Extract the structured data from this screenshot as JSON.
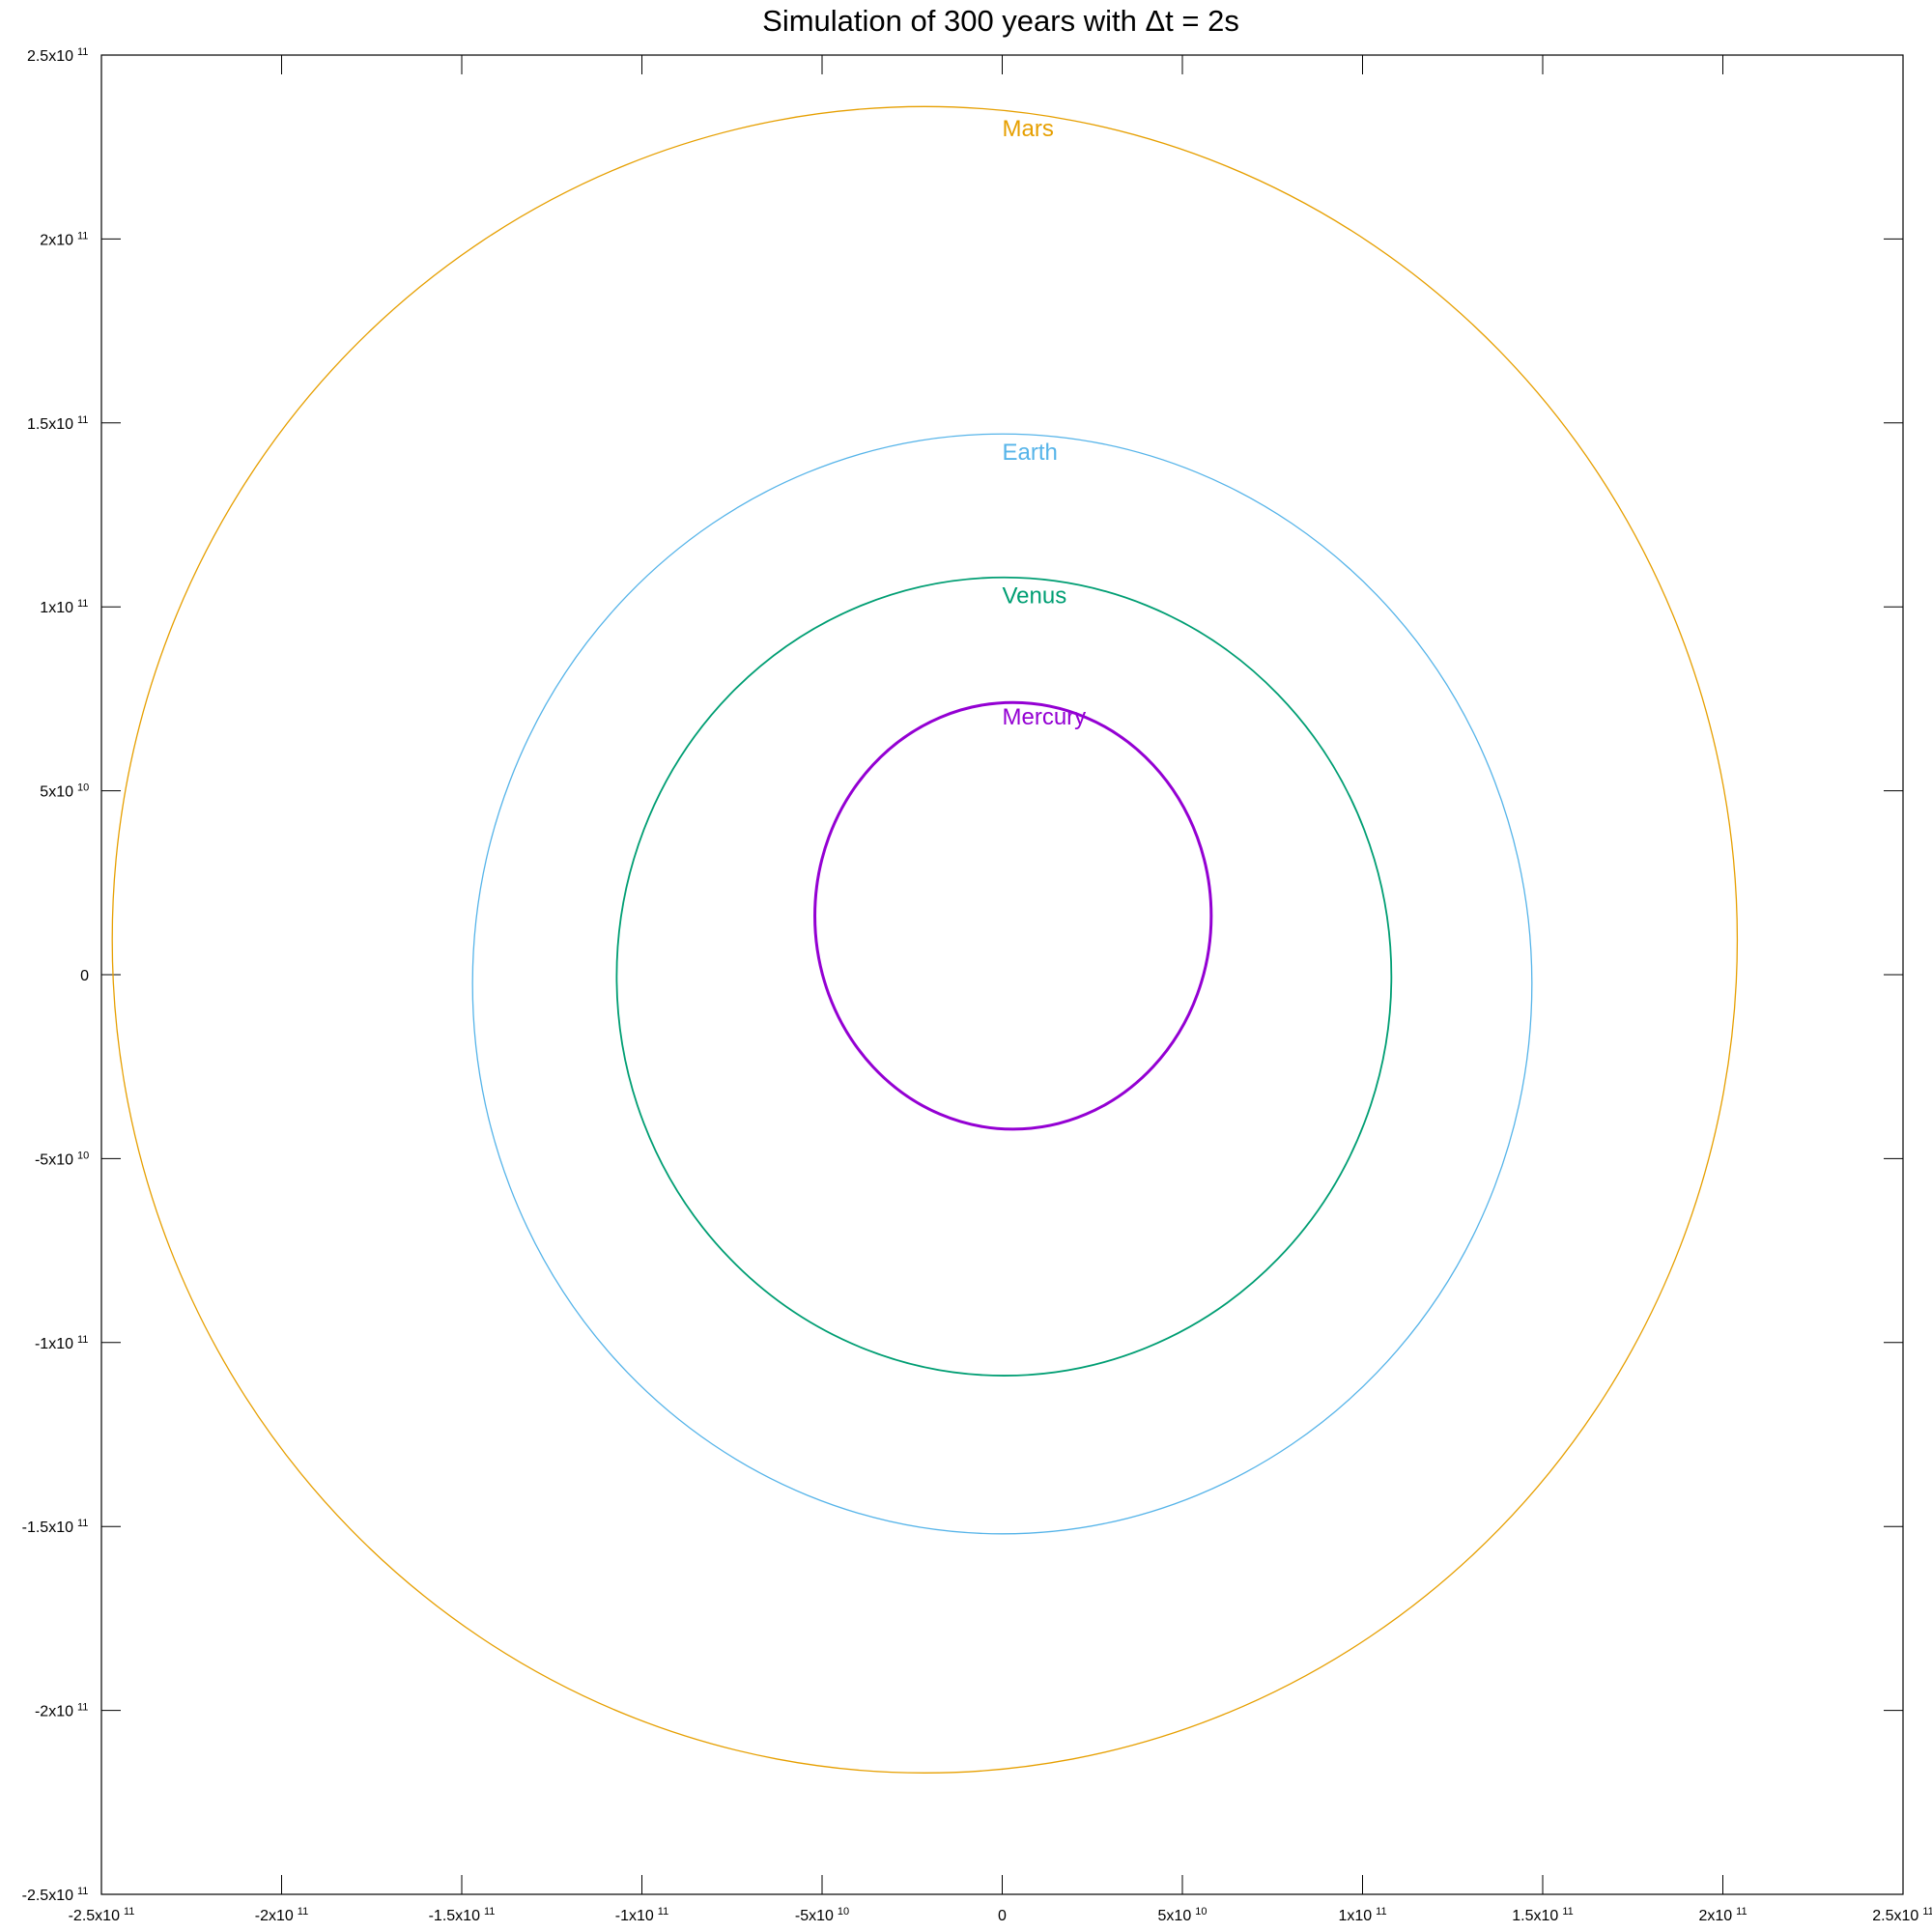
{
  "chart_data": {
    "type": "line",
    "title": "Simulation of 300 years with Δt = 2s",
    "xlabel": "",
    "ylabel": "",
    "xlim": [
      -250000000000.0,
      250000000000.0
    ],
    "ylim": [
      -250000000000.0,
      250000000000.0
    ],
    "grid": false,
    "legend": "none",
    "x_ticks": [
      {
        "value": -250000000000.0,
        "mant": "-2.5x10",
        "exp": "11"
      },
      {
        "value": -200000000000.0,
        "mant": "-2x10",
        "exp": "11"
      },
      {
        "value": -150000000000.0,
        "mant": "-1.5x10",
        "exp": "11"
      },
      {
        "value": -100000000000.0,
        "mant": "-1x10",
        "exp": "11"
      },
      {
        "value": -50000000000.0,
        "mant": "-5x10",
        "exp": "10"
      },
      {
        "value": 0,
        "mant": "0",
        "exp": ""
      },
      {
        "value": 50000000000.0,
        "mant": "5x10",
        "exp": "10"
      },
      {
        "value": 100000000000.0,
        "mant": "1x10",
        "exp": "11"
      },
      {
        "value": 150000000000.0,
        "mant": "1.5x10",
        "exp": "11"
      },
      {
        "value": 200000000000.0,
        "mant": "2x10",
        "exp": "11"
      },
      {
        "value": 250000000000.0,
        "mant": "2.5x10",
        "exp": "11"
      }
    ],
    "y_ticks": [
      {
        "value": 250000000000.0,
        "mant": "2.5x10",
        "exp": "11"
      },
      {
        "value": 200000000000.0,
        "mant": "2x10",
        "exp": "11"
      },
      {
        "value": 150000000000.0,
        "mant": "1.5x10",
        "exp": "11"
      },
      {
        "value": 100000000000.0,
        "mant": "1x10",
        "exp": "11"
      },
      {
        "value": 50000000000.0,
        "mant": "5x10",
        "exp": "10"
      },
      {
        "value": 0,
        "mant": "0",
        "exp": ""
      },
      {
        "value": -50000000000.0,
        "mant": "-5x10",
        "exp": "10"
      },
      {
        "value": -100000000000.0,
        "mant": "-1x10",
        "exp": "11"
      },
      {
        "value": -150000000000.0,
        "mant": "-1.5x10",
        "exp": "11"
      },
      {
        "value": -200000000000.0,
        "mant": "-2x10",
        "exp": "11"
      },
      {
        "value": -250000000000.0,
        "mant": "-2.5x10",
        "exp": "11"
      }
    ],
    "series": [
      {
        "name": "Mars",
        "color": "#e69f00",
        "x_range": [
          -247000000000.0,
          204000000000.0
        ],
        "y_range": [
          -217000000000.0,
          236000000000.0
        ],
        "label_at": [
          0,
          228000000000.0
        ]
      },
      {
        "name": "Earth",
        "color": "#56b4e9",
        "x_range": [
          -147000000000.0,
          147000000000.0
        ],
        "y_range": [
          -152000000000.0,
          147000000000.0
        ],
        "label_at": [
          0,
          140000000000.0
        ]
      },
      {
        "name": "Venus",
        "color": "#009e73",
        "x_range": [
          -107000000000.0,
          108000000000.0
        ],
        "y_range": [
          -109000000000.0,
          108000000000.0
        ],
        "label_at": [
          0,
          101000000000.0
        ]
      },
      {
        "name": "Mercury",
        "color": "#9400d3",
        "x_range": [
          -52000000000.0,
          58000000000.0
        ],
        "y_range": [
          -42000000000.0,
          74000000000.0
        ],
        "label_at": [
          0,
          68000000000.0
        ]
      }
    ]
  }
}
